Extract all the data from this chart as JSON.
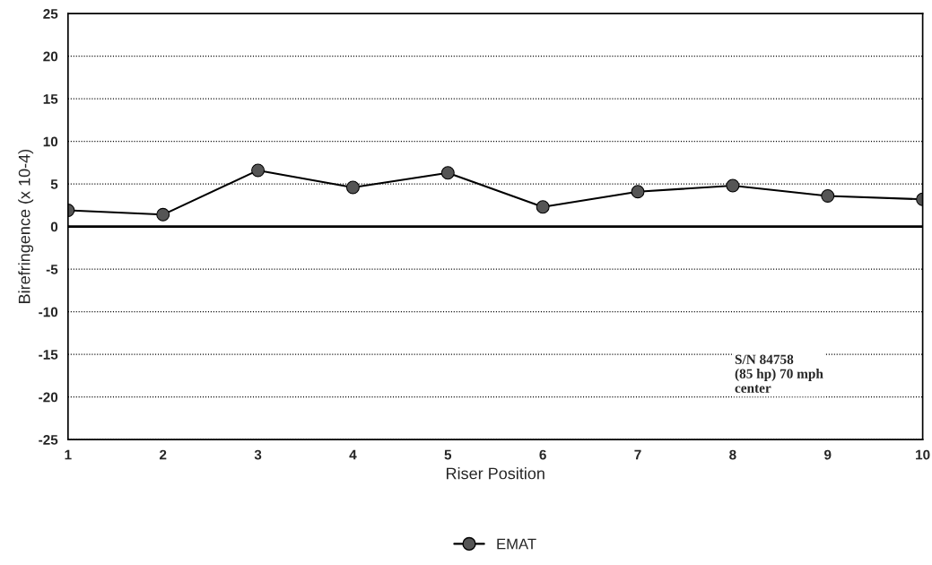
{
  "chart_data": {
    "type": "line",
    "xlabel": "Riser Position",
    "ylabel": "Birefringence (x 10-4)",
    "x": [
      1,
      2,
      3,
      4,
      5,
      6,
      7,
      8,
      9,
      10
    ],
    "series": [
      {
        "name": "EMAT",
        "color": "#000000",
        "values": [
          1.9,
          1.4,
          6.6,
          4.6,
          6.3,
          2.3,
          4.1,
          4.8,
          3.6,
          3.2
        ]
      }
    ],
    "xlim": [
      1,
      10
    ],
    "xticks": [
      1,
      2,
      3,
      4,
      5,
      6,
      7,
      8,
      9,
      10
    ],
    "ylim": [
      -25,
      25
    ],
    "yticks": [
      -25,
      -20,
      -15,
      -10,
      -5,
      0,
      5,
      10,
      15,
      20,
      25
    ],
    "grid": "y",
    "marker": "circle",
    "line_style": "solid",
    "legend": "bottom",
    "ref_lines": [
      {
        "axis": "y",
        "value": 0,
        "color": "#000000"
      }
    ],
    "annotations": [
      "S/N 84758\n(85 hp) 70 mph\ncenter"
    ]
  }
}
